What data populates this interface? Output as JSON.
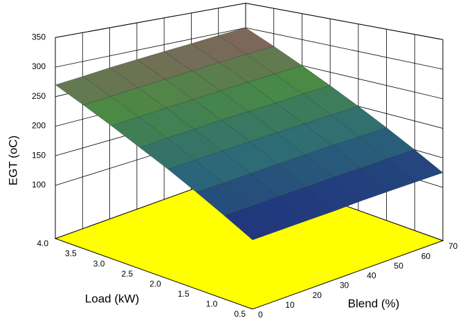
{
  "chart_data": {
    "type": "surface",
    "xlabel": "Load (kW)",
    "ylabel": "Blend (%)",
    "zlabel": "EGT (oC)",
    "x": [
      0.5,
      1.0,
      1.5,
      2.0,
      2.5,
      3.0,
      3.5,
      4.0
    ],
    "y": [
      0,
      10,
      20,
      30,
      40,
      50,
      60,
      70
    ],
    "z": [
      [
        110,
        112,
        114,
        116,
        119,
        121,
        123,
        125
      ],
      [
        133,
        135,
        138,
        140,
        143,
        145,
        148,
        150
      ],
      [
        156,
        158,
        161,
        164,
        167,
        170,
        172,
        175
      ],
      [
        179,
        182,
        185,
        188,
        191,
        194,
        197,
        200
      ],
      [
        201,
        205,
        208,
        212,
        215,
        218,
        222,
        225
      ],
      [
        224,
        228,
        232,
        235,
        239,
        243,
        246,
        250
      ],
      [
        247,
        251,
        255,
        259,
        263,
        267,
        271,
        275
      ],
      [
        270,
        274,
        279,
        283,
        287,
        291,
        296,
        300
      ]
    ],
    "xlim": [
      0.5,
      4.0
    ],
    "xticks": [
      0.5,
      {
        "value": 1.0,
        "label": "1.0"
      },
      1.5,
      {
        "value": 2.0,
        "label": "2.0"
      },
      2.5,
      {
        "value": 3.0,
        "label": "3.0"
      },
      3.5,
      {
        "value": 4.0,
        "label": "4.0"
      }
    ],
    "ylim": [
      0,
      70
    ],
    "yticks": [
      0,
      10,
      20,
      30,
      40,
      50,
      60,
      70
    ],
    "zlim": [
      10,
      350
    ],
    "zticks": [
      100,
      150,
      200,
      250,
      300,
      350
    ],
    "grid": true,
    "floor_color": "#ffff00",
    "colormap": [
      "#1e2a80",
      "#2c6a78",
      "#4a8a44",
      "#8c5c62"
    ]
  }
}
